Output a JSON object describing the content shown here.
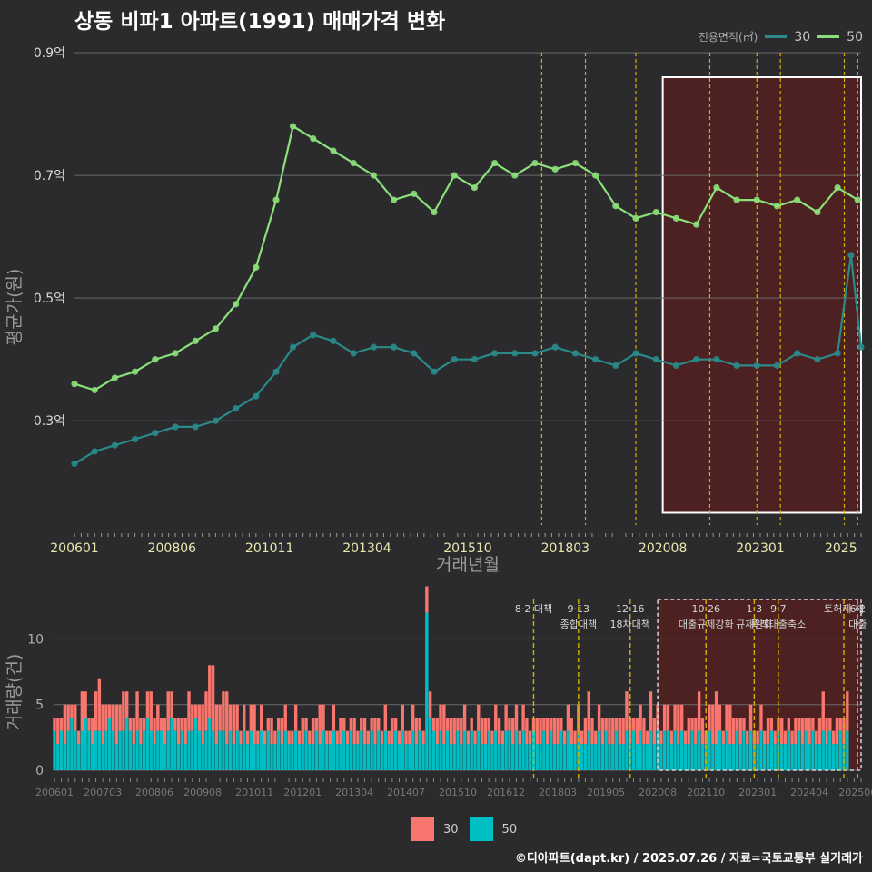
{
  "title": "상동 비파1 아파트(1991) 매매가격 변화",
  "footer": "©디아파트(dapt.kr) / 2025.07.26 / 자료=국토교통부 실거래가",
  "colors": {
    "background": "#2b2b2d",
    "series_30_price": "#2a8a8a",
    "series_50_price": "#8be07a",
    "bar_30": "#f8766d",
    "bar_50": "#00bfc4",
    "event_line": "#d4b000",
    "highlight_fill": "#5a1f1f"
  },
  "legend_top": {
    "title": "전용면적(㎡)",
    "items": [
      "30",
      "50"
    ]
  },
  "legend_bottom": {
    "items": [
      "30",
      "50"
    ]
  },
  "chart_data": [
    {
      "type": "line",
      "ylabel": "평균가(원)",
      "xlabel": "거래년월",
      "y_ticks": [
        "0.3억",
        "0.5억",
        "0.7억",
        "0.9억"
      ],
      "x_ticks": [
        "200601",
        "200806",
        "201011",
        "201304",
        "201510",
        "201803",
        "202008",
        "202301",
        "2025"
      ],
      "x_range": [
        "2006-01",
        "2025-07"
      ],
      "ylim": [
        0.13,
        0.9
      ],
      "highlight_region": [
        "2020-08",
        "2025-07"
      ],
      "event_lines": [
        "2017-08",
        "2018-09",
        "2019-12",
        "2021-10",
        "2022-12",
        "2023-07",
        "2025-02",
        "2025-06"
      ],
      "series": [
        {
          "name": "50",
          "points": [
            [
              "2006-01",
              0.36
            ],
            [
              "2006-07",
              0.35
            ],
            [
              "2007-01",
              0.37
            ],
            [
              "2007-07",
              0.38
            ],
            [
              "2008-01",
              0.4
            ],
            [
              "2008-07",
              0.41
            ],
            [
              "2009-01",
              0.43
            ],
            [
              "2009-07",
              0.45
            ],
            [
              "2010-01",
              0.49
            ],
            [
              "2010-07",
              0.55
            ],
            [
              "2011-01",
              0.66
            ],
            [
              "2011-06",
              0.78
            ],
            [
              "2011-12",
              0.76
            ],
            [
              "2012-06",
              0.74
            ],
            [
              "2012-12",
              0.72
            ],
            [
              "2013-06",
              0.7
            ],
            [
              "2013-12",
              0.66
            ],
            [
              "2014-06",
              0.67
            ],
            [
              "2014-12",
              0.64
            ],
            [
              "2015-06",
              0.7
            ],
            [
              "2015-12",
              0.68
            ],
            [
              "2016-06",
              0.72
            ],
            [
              "2016-12",
              0.7
            ],
            [
              "2017-06",
              0.72
            ],
            [
              "2017-12",
              0.71
            ],
            [
              "2018-06",
              0.72
            ],
            [
              "2018-12",
              0.7
            ],
            [
              "2019-06",
              0.65
            ],
            [
              "2019-12",
              0.63
            ],
            [
              "2020-06",
              0.64
            ],
            [
              "2020-12",
              0.63
            ],
            [
              "2021-06",
              0.62
            ],
            [
              "2021-12",
              0.68
            ],
            [
              "2022-06",
              0.66
            ],
            [
              "2022-12",
              0.66
            ],
            [
              "2023-06",
              0.65
            ],
            [
              "2023-12",
              0.66
            ],
            [
              "2024-06",
              0.64
            ],
            [
              "2024-12",
              0.68
            ],
            [
              "2025-06",
              0.66
            ]
          ]
        },
        {
          "name": "30",
          "points": [
            [
              "2006-01",
              0.23
            ],
            [
              "2006-07",
              0.25
            ],
            [
              "2007-01",
              0.26
            ],
            [
              "2007-07",
              0.27
            ],
            [
              "2008-01",
              0.28
            ],
            [
              "2008-07",
              0.29
            ],
            [
              "2009-01",
              0.29
            ],
            [
              "2009-07",
              0.3
            ],
            [
              "2010-01",
              0.32
            ],
            [
              "2010-07",
              0.34
            ],
            [
              "2011-01",
              0.38
            ],
            [
              "2011-06",
              0.42
            ],
            [
              "2011-12",
              0.44
            ],
            [
              "2012-06",
              0.43
            ],
            [
              "2012-12",
              0.41
            ],
            [
              "2013-06",
              0.42
            ],
            [
              "2013-12",
              0.42
            ],
            [
              "2014-06",
              0.41
            ],
            [
              "2014-12",
              0.38
            ],
            [
              "2015-06",
              0.4
            ],
            [
              "2015-12",
              0.4
            ],
            [
              "2016-06",
              0.41
            ],
            [
              "2016-12",
              0.41
            ],
            [
              "2017-06",
              0.41
            ],
            [
              "2017-12",
              0.42
            ],
            [
              "2018-06",
              0.41
            ],
            [
              "2018-12",
              0.4
            ],
            [
              "2019-06",
              0.39
            ],
            [
              "2019-12",
              0.41
            ],
            [
              "2020-06",
              0.4
            ],
            [
              "2020-12",
              0.39
            ],
            [
              "2021-06",
              0.4
            ],
            [
              "2021-12",
              0.4
            ],
            [
              "2022-06",
              0.39
            ],
            [
              "2022-12",
              0.39
            ],
            [
              "2023-06",
              0.39
            ],
            [
              "2023-12",
              0.41
            ],
            [
              "2024-06",
              0.4
            ],
            [
              "2024-12",
              0.41
            ],
            [
              "2025-04",
              0.57
            ],
            [
              "2025-07",
              0.42
            ]
          ]
        }
      ]
    },
    {
      "type": "bar",
      "stacked": true,
      "ylabel": "거래량(건)",
      "y_ticks": [
        "0",
        "5",
        "10"
      ],
      "x_ticks": [
        "200601",
        "200703",
        "200806",
        "200908",
        "201011",
        "201201",
        "201304",
        "201407",
        "201510",
        "201612",
        "201803",
        "201905",
        "202008",
        "202110",
        "202301",
        "202404",
        "202506"
      ],
      "x_range": [
        "2006-01",
        "2025-07"
      ],
      "ylim": [
        0,
        13
      ],
      "highlight_region": [
        "2020-08",
        "2025-07"
      ],
      "events": [
        {
          "date": "2017-08",
          "label": "8·2 대책"
        },
        {
          "date": "2018-09",
          "label": "9·13\n종합대책"
        },
        {
          "date": "2019-12",
          "label": "12·16\n18차대책"
        },
        {
          "date": "2021-10",
          "label": "10·26\n대출규제강화"
        },
        {
          "date": "2022-12",
          "label": "1·3\n규제완화"
        },
        {
          "date": "2023-07",
          "label": "9·7\n특례대출축소"
        },
        {
          "date": "2025-02",
          "label": "토허제 해"
        },
        {
          "date": "2025-06",
          "label": "6·2\n대출"
        }
      ],
      "series": [
        {
          "name": "30",
          "monthly_period": [
            "2006-01",
            "2025-07"
          ],
          "values": [
            1,
            2,
            1,
            3,
            2,
            1,
            2,
            1,
            3,
            2,
            1,
            2,
            3,
            4,
            3,
            2,
            1,
            2,
            3,
            2,
            3,
            2,
            1,
            2,
            3,
            2,
            1,
            2,
            3,
            2,
            2,
            1,
            2,
            3,
            2,
            1,
            2,
            1,
            2,
            3,
            2,
            1,
            2,
            3,
            3,
            4,
            5,
            3,
            2,
            3,
            4,
            2,
            3,
            2,
            1,
            2,
            1,
            2,
            3,
            1,
            2,
            1,
            1,
            2,
            1,
            1,
            2,
            2,
            1,
            1,
            2,
            1,
            2,
            1,
            1,
            2,
            1,
            3,
            2,
            1,
            1,
            2,
            1,
            2,
            1,
            1,
            1,
            2,
            1,
            1,
            2,
            1,
            1,
            2,
            1,
            1,
            2,
            1,
            2,
            1,
            1,
            2,
            1,
            1,
            2,
            2,
            1,
            1,
            2,
            2,
            1,
            2,
            2,
            3,
            1,
            2,
            2,
            1,
            2,
            2,
            1,
            1,
            1,
            2,
            2,
            2,
            1,
            1,
            2,
            2,
            1,
            2,
            1,
            2,
            2,
            1,
            2,
            2,
            1,
            1,
            2,
            2,
            1,
            2,
            1,
            2,
            2,
            1,
            1,
            2,
            2,
            1,
            2,
            1,
            2,
            3,
            2,
            1,
            2,
            2,
            1,
            2,
            2,
            1,
            2,
            2,
            3,
            2,
            1,
            2,
            2,
            2,
            1,
            3,
            2,
            2,
            1,
            2,
            2,
            1,
            2,
            3,
            2,
            1,
            2,
            1,
            2,
            3,
            2,
            1,
            2,
            3,
            4,
            2,
            1,
            2,
            3,
            2,
            1,
            2,
            1,
            1,
            2,
            1,
            1,
            2,
            1,
            2,
            1,
            1,
            1,
            2,
            1,
            1,
            1,
            2,
            1,
            2,
            1,
            2,
            1,
            1,
            2,
            3,
            2,
            1,
            1,
            2,
            1,
            2,
            3
          ]
        },
        {
          "name": "50",
          "monthly_period": [
            "2006-01",
            "2025-07"
          ],
          "values": [
            3,
            2,
            3,
            2,
            3,
            4,
            3,
            2,
            3,
            4,
            3,
            2,
            3,
            3,
            2,
            3,
            4,
            3,
            2,
            3,
            3,
            4,
            3,
            2,
            3,
            2,
            3,
            4,
            3,
            2,
            3,
            3,
            2,
            3,
            4,
            3,
            2,
            3,
            2,
            3,
            3,
            4,
            3,
            2,
            3,
            4,
            3,
            2,
            3,
            3,
            2,
            3,
            2,
            3,
            2,
            3,
            2,
            3,
            2,
            2,
            3,
            2,
            3,
            2,
            2,
            3,
            2,
            3,
            2,
            2,
            3,
            2,
            2,
            3,
            2,
            2,
            3,
            2,
            3,
            2,
            2,
            3,
            2,
            2,
            3,
            2,
            3,
            2,
            2,
            3,
            2,
            2,
            3,
            2,
            3,
            2,
            3,
            2,
            2,
            3,
            2,
            3,
            2,
            2,
            3,
            2,
            3,
            2,
            12,
            4,
            3,
            2,
            3,
            2,
            3,
            2,
            2,
            3,
            2,
            3,
            2,
            3,
            2,
            3,
            2,
            2,
            3,
            2,
            3,
            2,
            2,
            3,
            3,
            2,
            3,
            2,
            3,
            2,
            2,
            3,
            2,
            2,
            3,
            2,
            3,
            2,
            2,
            3,
            2,
            3,
            2,
            2,
            3,
            2,
            2,
            3,
            2,
            2,
            3,
            2,
            3,
            2,
            2,
            3,
            2,
            2,
            3,
            2,
            3,
            2,
            3,
            2,
            2,
            3,
            2,
            3,
            2,
            3,
            3,
            2,
            3,
            2,
            3,
            2,
            2,
            3,
            2,
            3,
            2,
            2,
            3,
            2,
            2,
            3,
            2,
            3,
            2,
            2,
            3,
            2,
            3,
            2,
            3,
            2,
            2,
            3,
            2,
            2,
            3,
            2,
            3,
            2,
            2,
            3,
            2,
            2,
            3,
            2,
            3,
            2,
            3,
            2,
            2,
            3,
            2,
            3,
            2,
            2,
            3,
            2,
            3,
            2,
            2,
            3
          ]
        }
      ]
    }
  ]
}
